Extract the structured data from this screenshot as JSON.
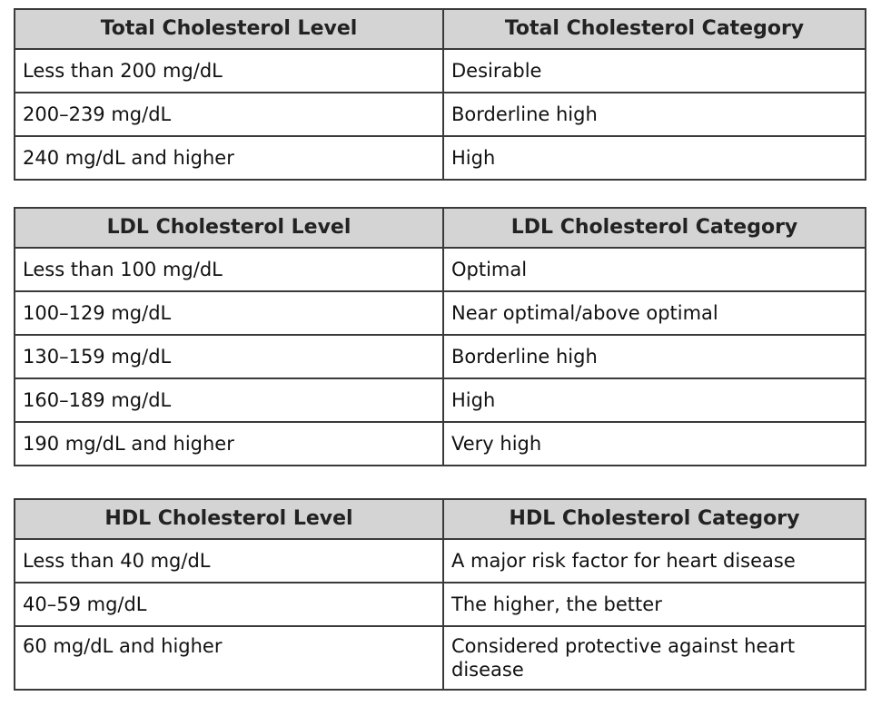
{
  "tables": [
    {
      "headers": [
        "Total Cholesterol Level",
        "Total Cholesterol Category"
      ],
      "rows": [
        [
          "Less than 200 mg/dL",
          "Desirable"
        ],
        [
          "200–239 mg/dL",
          "Borderline high"
        ],
        [
          "240 mg/dL and higher",
          "High"
        ]
      ]
    },
    {
      "headers": [
        "LDL Cholesterol Level",
        "LDL Cholesterol Category"
      ],
      "rows": [
        [
          "Less than 100 mg/dL",
          "Optimal"
        ],
        [
          "100–129 mg/dL",
          "Near optimal/above optimal"
        ],
        [
          "130–159 mg/dL",
          "Borderline high"
        ],
        [
          "160–189 mg/dL",
          "High"
        ],
        [
          "190 mg/dL and higher",
          "Very high"
        ]
      ]
    },
    {
      "headers": [
        "HDL Cholesterol Level",
        "HDL Cholesterol Category"
      ],
      "rows": [
        [
          "Less than 40 mg/dL",
          "A major risk factor for heart disease"
        ],
        [
          "40–59 mg/dL",
          "The higher, the better"
        ],
        [
          "60 mg/dL and higher",
          "Considered protective against heart disease"
        ]
      ]
    }
  ]
}
